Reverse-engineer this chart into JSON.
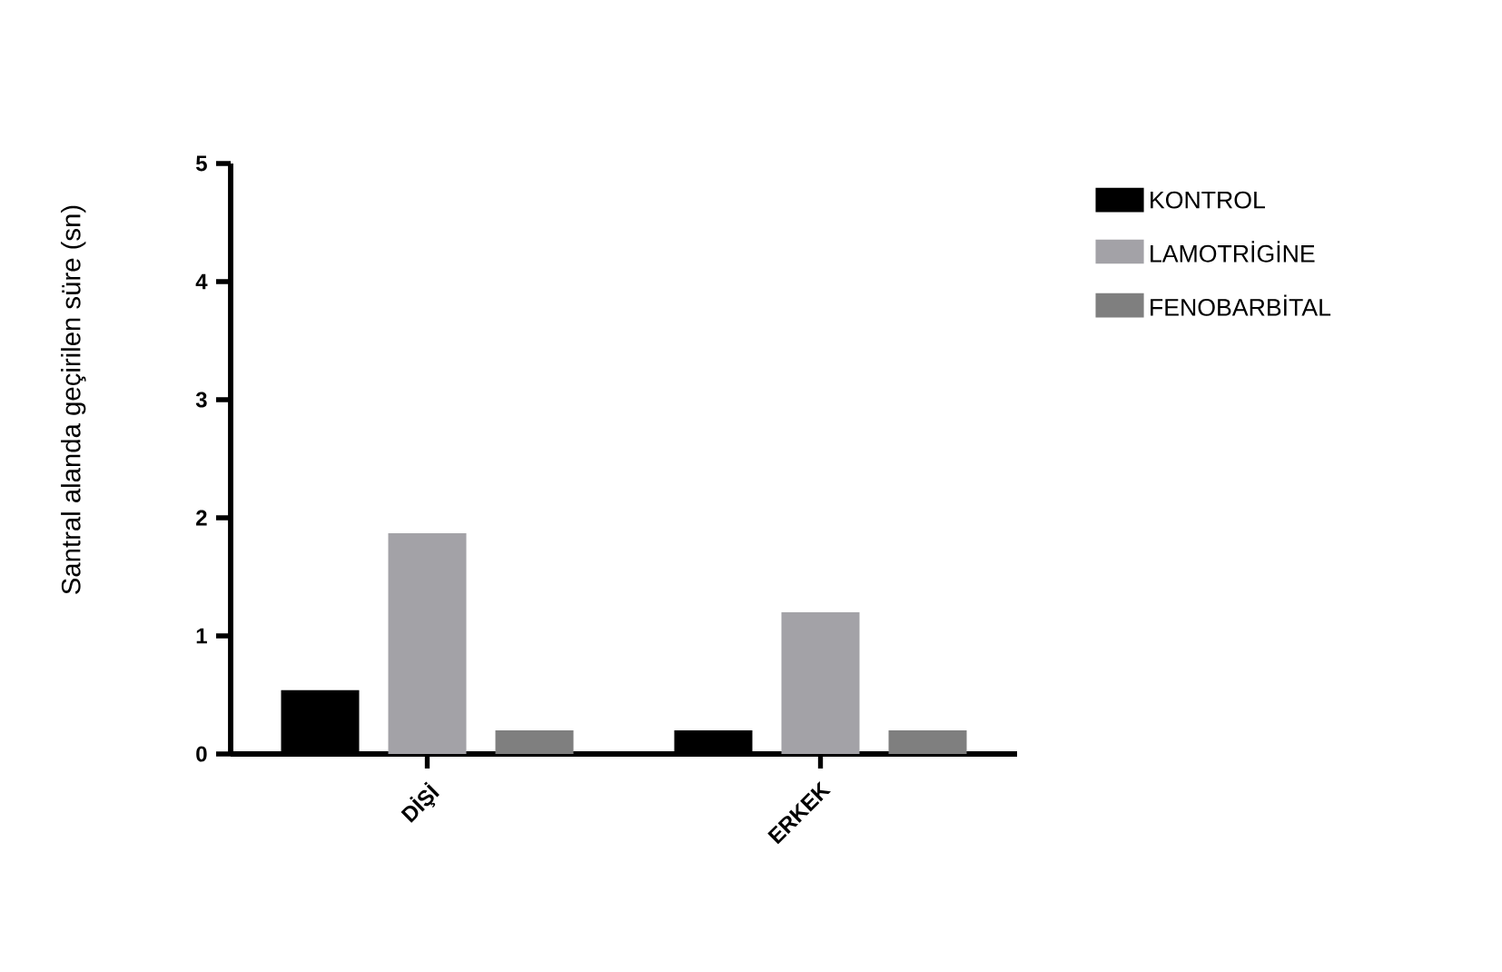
{
  "chart_data": {
    "type": "bar",
    "ylabel": "Santral alanda geçirilen süre (sn)",
    "categories": [
      "DİŞİ",
      "ERKEK"
    ],
    "series": [
      {
        "name": "KONTROL",
        "color": "#000000",
        "values": [
          0.54,
          0.2
        ]
      },
      {
        "name": "LAMOTRİGİNE",
        "color": "#a3a2a7",
        "values": [
          1.87,
          1.2
        ]
      },
      {
        "name": "FENOBARBİTAL",
        "color": "#7f7f7f",
        "values": [
          0.2,
          0.2
        ]
      }
    ],
    "ylim": [
      0,
      5
    ],
    "yticks": [
      0,
      1,
      2,
      3,
      4,
      5
    ],
    "grid": false,
    "legend": "top right"
  }
}
